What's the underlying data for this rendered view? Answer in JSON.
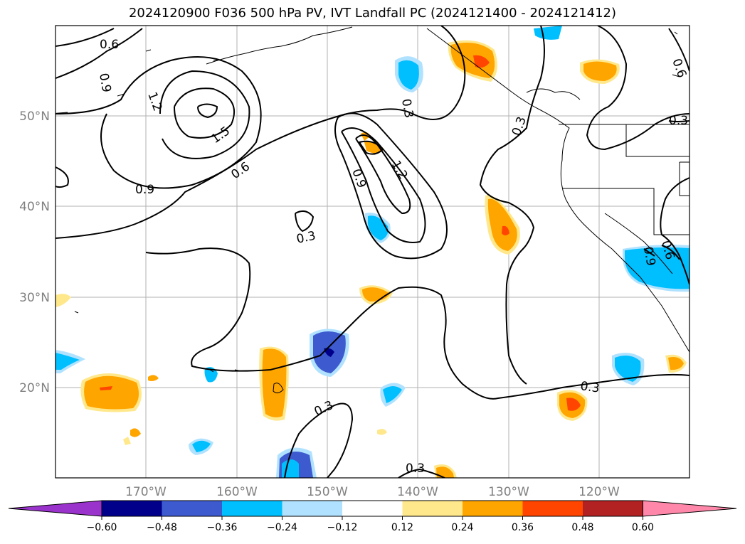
{
  "title": "2024120900 F036 500 hPa PV, IVT Landfall PC (2024121400 - 2024121412)",
  "map": {
    "lat_labels": [
      "50°N",
      "40°N",
      "30°N",
      "20°N"
    ],
    "lon_labels": [
      "170°W",
      "160°W",
      "150°W",
      "140°W",
      "130°W",
      "120°W"
    ],
    "contour_labels": [
      "0.6",
      "0.9",
      "1.2",
      "1.5",
      "0.6",
      "0.9",
      "0.3",
      "0.9",
      "1.2",
      "0.3",
      "0.3",
      "0.6",
      "0.3",
      "0.9",
      "0.6",
      "0.3",
      "0.3",
      "0.3"
    ]
  },
  "colorbar": {
    "ticks": [
      "−0.60",
      "−0.48",
      "−0.36",
      "−0.24",
      "−0.12",
      "0.12",
      "0.24",
      "0.36",
      "0.48",
      "0.60"
    ],
    "colors": [
      "#9a33cc",
      "#00008b",
      "#3d5bcf",
      "#00bfff",
      "#b0e2ff",
      "#ffffff",
      "#ffe88c",
      "#ffa500",
      "#ff4500",
      "#b22222",
      "#ff88aa"
    ]
  }
}
